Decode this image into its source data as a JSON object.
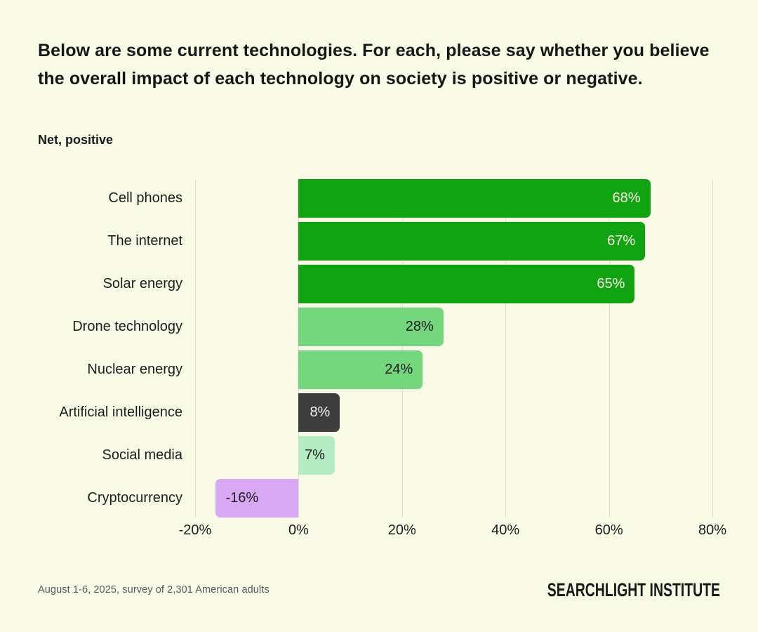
{
  "header": {
    "title": "Below are some current technologies. For each, please say whether you believe the overall impact of each technology on society is positive or negative.",
    "subtitle": "Net, positive"
  },
  "footer": {
    "source": "August 1-6, 2025, survey of 2,301 American adults",
    "brand": "SEARCHLIGHT INSTITUTE"
  },
  "colors": {
    "background": "#fafbe7",
    "gridline": "#e0e0d0",
    "dark_green": "#12a312",
    "medium_green": "#74d77e",
    "light_green": "#b6ecc4",
    "dark_gray": "#3d3d3d",
    "purple": "#d8a8f4"
  },
  "chart_data": {
    "type": "bar",
    "orientation": "horizontal",
    "title": "Net, positive",
    "xlabel": "",
    "ylabel": "",
    "xlim": [
      -20,
      80
    ],
    "grid": true,
    "legend": false,
    "categories": [
      "Cell phones",
      "The internet",
      "Solar energy",
      "Drone technology",
      "Nuclear energy",
      "Artificial intelligence",
      "Social media",
      "Cryptocurrency"
    ],
    "values": [
      68,
      67,
      65,
      28,
      24,
      8,
      7,
      -16
    ],
    "ticks": [
      {
        "value": -20,
        "label": "-20%"
      },
      {
        "value": 0,
        "label": "0%"
      },
      {
        "value": 20,
        "label": "20%"
      },
      {
        "value": 40,
        "label": "40%"
      },
      {
        "value": 60,
        "label": "60%"
      },
      {
        "value": 80,
        "label": "80%"
      }
    ],
    "items": [
      {
        "category": "Cell phones",
        "value": 68,
        "value_label": "68%",
        "color": "#12a312",
        "text_color": "#fafae8"
      },
      {
        "category": "The internet",
        "value": 67,
        "value_label": "67%",
        "color": "#12a312",
        "text_color": "#fafae8"
      },
      {
        "category": "Solar energy",
        "value": 65,
        "value_label": "65%",
        "color": "#12a312",
        "text_color": "#fafae8"
      },
      {
        "category": "Drone technology",
        "value": 28,
        "value_label": "28%",
        "color": "#74d77e",
        "text_color": "#1d1d1b"
      },
      {
        "category": "Nuclear energy",
        "value": 24,
        "value_label": "24%",
        "color": "#74d77e",
        "text_color": "#1d1d1b"
      },
      {
        "category": "Artificial intelligence",
        "value": 8,
        "value_label": "8%",
        "color": "#3d3d3d",
        "text_color": "#f2f2ec"
      },
      {
        "category": "Social media",
        "value": 7,
        "value_label": "7%",
        "color": "#b6ecc4",
        "text_color": "#1d1d1b"
      },
      {
        "category": "Cryptocurrency",
        "value": -16,
        "value_label": "-16%",
        "color": "#d8a8f4",
        "text_color": "#1d1d1b"
      }
    ]
  }
}
